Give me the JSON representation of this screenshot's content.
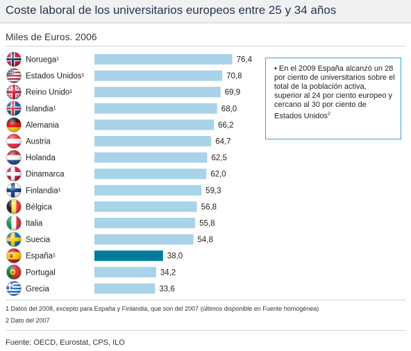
{
  "chart_data": {
    "type": "bar",
    "orientation": "horizontal",
    "title": "Coste laboral de los universitarios europeos entre 25 y 34 años",
    "subtitle": "Miles de Euros. 2006",
    "categories": [
      "Noruega¹",
      "Estados Unidos¹",
      "Reino Unido¹",
      "Islandia¹",
      "Alemania",
      "Austria",
      "Holanda",
      "Dinamarca",
      "Finlandia¹",
      "Bélgica",
      "Italia",
      "Suecia",
      "España¹",
      "Portugal",
      "Grecia"
    ],
    "values": [
      76.4,
      70.8,
      69.9,
      68.0,
      66.2,
      64.7,
      62.5,
      62.0,
      59.3,
      56.8,
      55.8,
      54.8,
      38.0,
      34.2,
      33.6
    ],
    "value_labels": [
      "76,4",
      "70,8",
      "69,9",
      "68,0",
      "66,2",
      "64,7",
      "62,5",
      "62,0",
      "59,3",
      "56,8",
      "55,8",
      "54,8",
      "38,0",
      "34,2",
      "33,6"
    ],
    "highlight_category": "España¹",
    "colors": {
      "bar": "#a8d3e8",
      "highlight": "#007b9b"
    },
    "flags": [
      "norway",
      "usa",
      "uk",
      "iceland",
      "germany",
      "austria",
      "netherlands",
      "denmark",
      "finland",
      "belgium",
      "italy",
      "sweden",
      "spain",
      "portugal",
      "greece"
    ],
    "xlabel": "",
    "ylabel": "",
    "grid": false,
    "legend": "none"
  },
  "note": {
    "text": "• En el 2009 España alcanzó un 28 por ciento de universitarios sobre el total de la población activa, superior al 24 por ciento europeo y cercano al 30 por ciento de Estados Unidos",
    "sup": "2"
  },
  "footnotes": {
    "f1": "1 Datos del 2008, excepto para España y Finlandia, que son del 2007 (últimos disponible en Fuente homogénea)",
    "f2": "2 Dato del 2007"
  },
  "source": "Fuente: OECD, Eurostat, CPS, ILO"
}
